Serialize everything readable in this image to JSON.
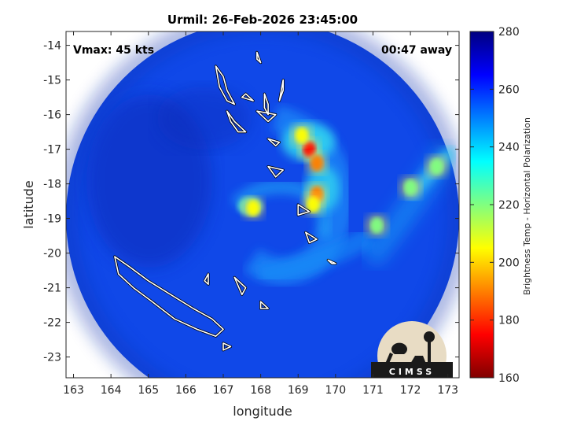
{
  "chart_data": {
    "type": "heatmap",
    "title": "Urmil: 26-Feb-2026 23:45:00",
    "xlabel": "longitude",
    "ylabel": "latitude",
    "xlim": [
      162.8,
      173.3
    ],
    "ylim": [
      -23.6,
      -13.6
    ],
    "x_ticks": [
      "163",
      "164",
      "165",
      "166",
      "167",
      "168",
      "169",
      "170",
      "171",
      "172",
      "173"
    ],
    "y_ticks": [
      "-14",
      "-15",
      "-16",
      "-17",
      "-18",
      "-19",
      "-20",
      "-21",
      "-22",
      "-23"
    ],
    "annotations": {
      "left": "Vmax: 45 kts",
      "right": "00:47 away"
    },
    "colorbar": {
      "label": "Brightness Temp - Horizontal Polarization",
      "range": [
        160,
        280
      ],
      "ticks": [
        "280",
        "260",
        "240",
        "220",
        "200",
        "180",
        "160"
      ],
      "colors": [
        "#800000",
        "#ff0000",
        "#ff8000",
        "#ffff00",
        "#80ff80",
        "#00ffff",
        "#0080ff",
        "#0000ff",
        "#000080"
      ]
    },
    "swath_center": [
      168.3,
      -18.95
    ],
    "cold_cloud_features": [
      {
        "lon": 169.3,
        "lat": -17.0,
        "value": 170
      },
      {
        "lon": 169.5,
        "lat": -17.4,
        "value": 185
      },
      {
        "lon": 169.1,
        "lat": -16.6,
        "value": 205
      },
      {
        "lon": 169.5,
        "lat": -18.3,
        "value": 190
      },
      {
        "lon": 169.4,
        "lat": -18.6,
        "value": 205
      },
      {
        "lon": 167.8,
        "lat": -18.7,
        "value": 200
      },
      {
        "lon": 172.7,
        "lat": -17.5,
        "value": 215
      },
      {
        "lon": 172.0,
        "lat": -18.1,
        "value": 215
      },
      {
        "lon": 171.1,
        "lat": -19.2,
        "value": 220
      }
    ],
    "logo": "CIMSS"
  }
}
